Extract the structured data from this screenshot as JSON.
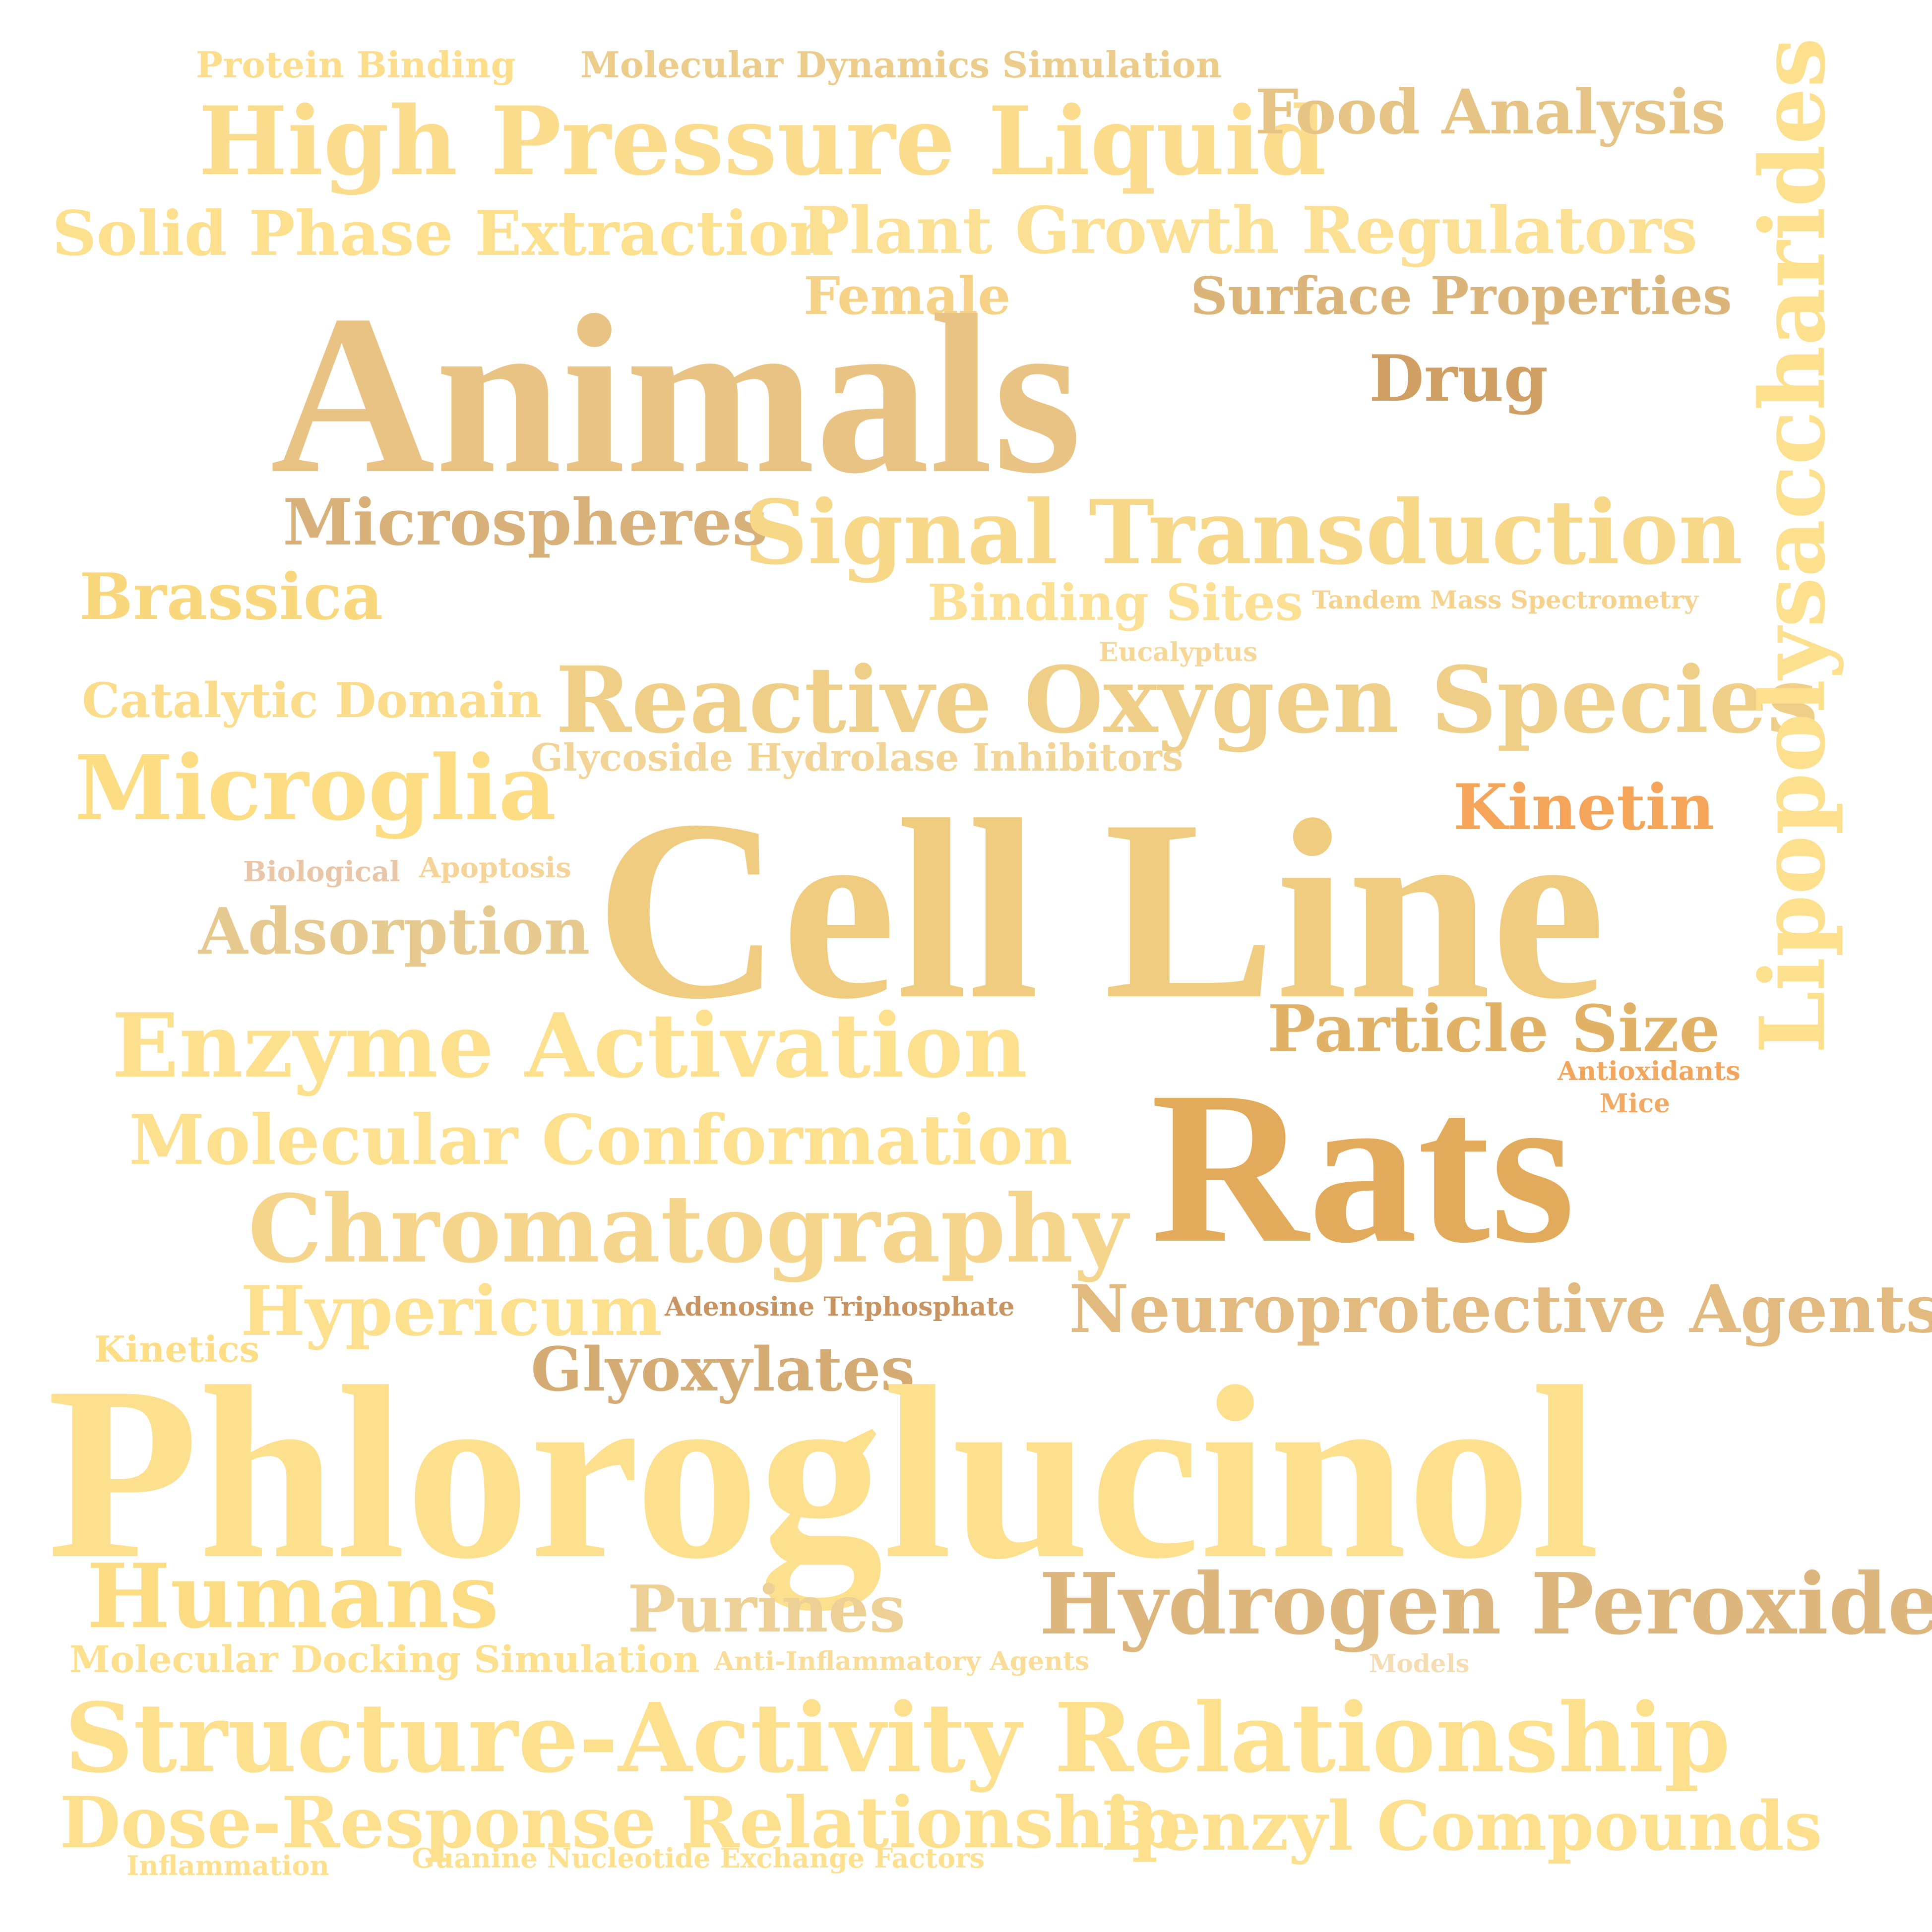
{
  "colors": {
    "background": "#ffffff",
    "pale_yellow": "#fde08e",
    "light_gold": "#f8d98a",
    "gold": "#efcc84",
    "tan": "#e3c089",
    "brown_tan": "#d3a46b",
    "amber": "#e2ab5c",
    "orange": "#f4a55a",
    "pinkish": "#e9c6a8"
  },
  "words": {
    "protein_binding": "Protein Binding",
    "molecular_dynamics": "Molecular Dynamics Simulation",
    "high_pressure_liquid": "High Pressure Liquid",
    "food_analysis": "Food Analysis",
    "solid_phase_extraction": "Solid Phase Extraction",
    "plant_growth_regulators": "Plant Growth Regulators",
    "lipopolysaccharides": "Lipopolysaccharides",
    "female": "Female",
    "surface_properties": "Surface Properties",
    "animals": "Animals",
    "drug": "Drug",
    "microspheres": "Microspheres",
    "signal_transduction": "Signal Transduction",
    "brassica": "Brassica",
    "binding_sites": "Binding Sites",
    "tandem_mass": "Tandem Mass Spectrometry",
    "eucalyptus": "Eucalyptus",
    "catalytic_domain": "Catalytic Domain",
    "reactive_oxygen": "Reactive Oxygen Species",
    "glycoside_hydrolase": "Glycoside Hydrolase Inhibitors",
    "microglia": "Microglia",
    "kinetin": "Kinetin",
    "biological": "Biological",
    "apoptosis": "Apoptosis",
    "cell_line": "Cell Line",
    "adsorption": "Adsorption",
    "particle_size": "Particle Size",
    "enzyme_activation": "Enzyme Activation",
    "antioxidants": "Antioxidants",
    "mice": "Mice",
    "molecular_conformation": "Molecular Conformation",
    "rats": "Rats",
    "chromatography": "Chromatography",
    "hypericum": "Hypericum",
    "adenosine_triphosphate": "Adenosine Triphosphate",
    "neuroprotective_agents": "Neuroprotective Agents",
    "kinetics": "Kinetics",
    "glyoxylates": "Glyoxylates",
    "phloroglucinol": "Phloroglucinol",
    "humans": "Humans",
    "purines": "Purines",
    "hydrogen_peroxide": "Hydrogen Peroxide",
    "molecular_docking": "Molecular Docking Simulation",
    "anti_inflammatory": "Anti-Inflammatory Agents",
    "models": "Models",
    "sar": "Structure-Activity Relationship",
    "dose_response": "Dose-Response Relationship",
    "benzyl_compounds": "Benzyl Compounds",
    "inflammation": "Inflammation",
    "guanine_nucleotide": "Guanine Nucleotide Exchange Factors"
  }
}
